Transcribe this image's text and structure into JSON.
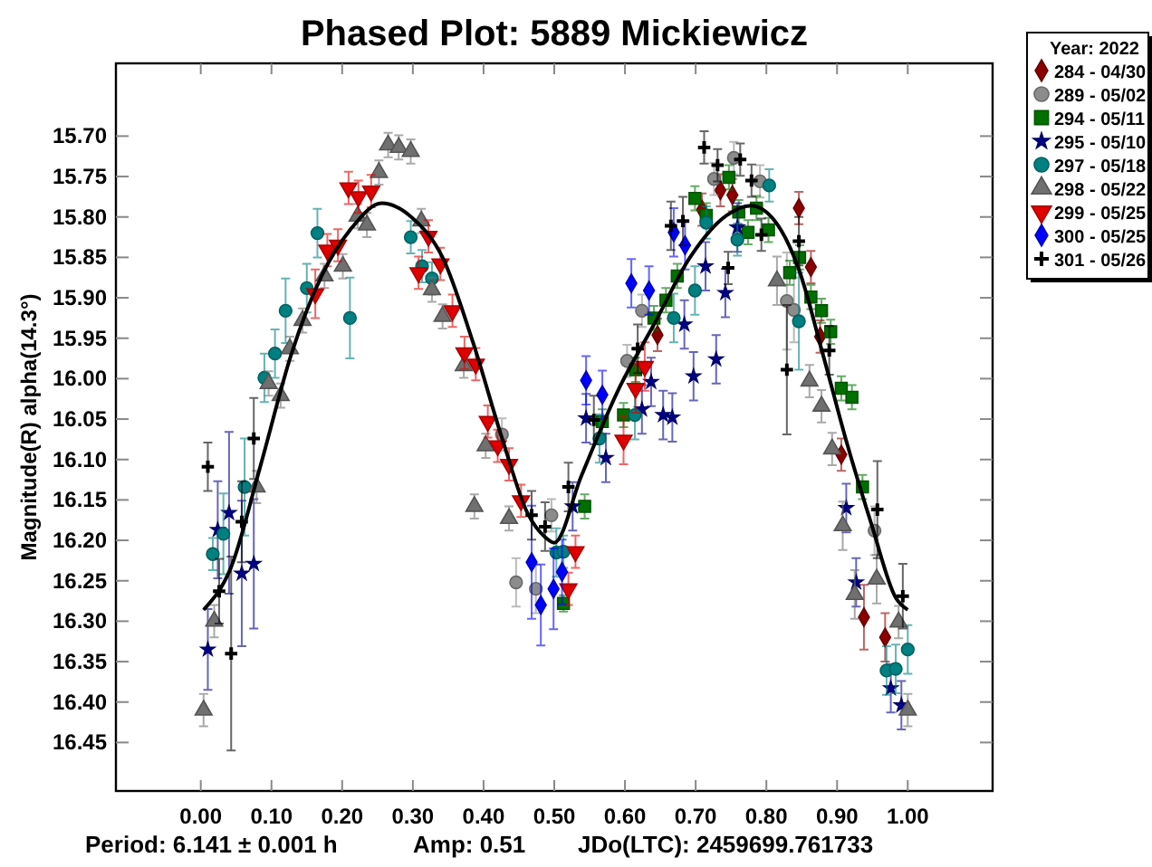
{
  "chart_data": {
    "type": "scatter",
    "title": "Phased Plot: 5889 Mickiewicz",
    "ylabel": "Magnitude(R) alpha(14.3°)",
    "legend_title": "Year: 2022",
    "legend": "top right",
    "xlim": [
      -0.12,
      1.12
    ],
    "xticks": [
      {
        "value": 0,
        "label": "0.00"
      },
      {
        "value": 0.1,
        "label": "0.10"
      },
      {
        "value": 0.2,
        "label": "0.20"
      },
      {
        "value": 0.3,
        "label": "0.30"
      },
      {
        "value": 0.4,
        "label": "0.40"
      },
      {
        "value": 0.5,
        "label": "0.50"
      },
      {
        "value": 0.6,
        "label": "0.60"
      },
      {
        "value": 0.7,
        "label": "0.70"
      },
      {
        "value": 0.8,
        "label": "0.80"
      },
      {
        "value": 0.9,
        "label": "0.90"
      },
      {
        "value": 1,
        "label": "1.00"
      }
    ],
    "ylim": [
      16.51,
      15.61
    ],
    "yticks": [
      {
        "value": 15.7,
        "label": "15.70"
      },
      15.75,
      {
        "value": 15.8,
        "label": "15.80"
      },
      15.85,
      {
        "value": 15.9,
        "label": "15.90"
      },
      15.95,
      {
        "value": 16.0,
        "label": "16.00"
      },
      16.05,
      {
        "value": 16.1,
        "label": "16.10"
      },
      16.15,
      {
        "value": 16.2,
        "label": "16.20"
      },
      16.25,
      {
        "value": 16.3,
        "label": "16.30"
      },
      16.35,
      {
        "value": 16.4,
        "label": "16.40"
      },
      16.45
    ],
    "annotations": [
      "Period: 6.141 ± 0.001 h",
      "Amp: 0.51",
      "JDo(LTC): 2459699.761733"
    ],
    "series": [
      {
        "name": "284 - 04/30",
        "color": "#8b0000",
        "marker": "diamond",
        "x": [
          0.646,
          0.709,
          0.735,
          0.752,
          0.846,
          0.863,
          0.876,
          0.906,
          0.938,
          0.968
        ],
        "values": [
          15.946,
          15.791,
          15.767,
          15.773,
          15.789,
          15.862,
          15.948,
          16.094,
          16.295,
          16.32
        ],
        "errors": [
          0.02,
          0.02,
          0.02,
          0.02,
          0.02,
          0.02,
          0.02,
          0.02,
          0.04,
          0.03
        ]
      },
      {
        "name": "289 - 05/02",
        "color": "#8c8c8c",
        "marker": "circle",
        "x": [
          0.426,
          0.446,
          0.474,
          0.496,
          0.603,
          0.624,
          0.726,
          0.754,
          0.791,
          0.829,
          0.839,
          0.953
        ],
        "values": [
          16.069,
          16.252,
          16.26,
          16.169,
          15.978,
          15.916,
          15.753,
          15.727,
          15.756,
          15.904,
          15.915,
          16.188
        ],
        "errors": [
          0.02,
          0.03,
          0.03,
          0.02,
          0.02,
          0.02,
          0.02,
          0.02,
          0.02,
          0.06,
          0.04,
          0.03
        ]
      },
      {
        "name": "294 - 05/11",
        "color": "#007000",
        "marker": "square",
        "x": [
          0.513,
          0.543,
          0.568,
          0.598,
          0.615,
          0.641,
          0.658,
          0.674,
          0.699,
          0.715,
          0.747,
          0.761,
          0.774,
          0.786,
          0.803,
          0.833,
          0.847,
          0.863,
          0.878,
          0.891,
          0.906,
          0.921,
          0.936
        ],
        "values": [
          16.278,
          16.158,
          16.053,
          16.045,
          15.989,
          15.925,
          15.903,
          15.873,
          15.777,
          15.798,
          15.751,
          15.794,
          15.819,
          15.789,
          15.816,
          15.869,
          15.85,
          15.899,
          15.916,
          15.942,
          16.012,
          16.023,
          16.134
        ],
        "errors": [
          0.01,
          0.015,
          0.015,
          0.015,
          0.015,
          0.015,
          0.015,
          0.015,
          0.015,
          0.015,
          0.015,
          0.015,
          0.015,
          0.015,
          0.015,
          0.015,
          0.015,
          0.015,
          0.015,
          0.015,
          0.015,
          0.015,
          0.015
        ]
      },
      {
        "name": "295 - 05/10",
        "color": "#00008b",
        "marker": "star",
        "x": [
          0.01,
          0.024,
          0.04,
          0.058,
          0.075,
          0.526,
          0.545,
          0.573,
          0.624,
          0.637,
          0.654,
          0.667,
          0.684,
          0.697,
          0.714,
          0.729,
          0.742,
          0.759,
          0.913,
          0.927,
          0.976,
          0.991
        ],
        "values": [
          16.335,
          16.187,
          16.166,
          16.241,
          16.229,
          16.158,
          16.049,
          16.098,
          16.038,
          16.004,
          16.045,
          16.048,
          15.933,
          15.997,
          15.861,
          15.976,
          15.894,
          15.813,
          16.16,
          16.252,
          16.383,
          16.404
        ],
        "errors": [
          0.05,
          0.06,
          0.1,
          0.09,
          0.08,
          0.03,
          0.03,
          0.03,
          0.03,
          0.03,
          0.03,
          0.03,
          0.03,
          0.03,
          0.03,
          0.03,
          0.03,
          0.03,
          0.03,
          0.03,
          0.03,
          0.03
        ]
      },
      {
        "name": "297 - 05/18",
        "color": "#008080",
        "marker": "circle",
        "x": [
          0.017,
          0.032,
          0.062,
          0.09,
          0.105,
          0.12,
          0.15,
          0.165,
          0.211,
          0.297,
          0.313,
          0.327,
          0.503,
          0.513,
          0.564,
          0.614,
          0.669,
          0.699,
          0.715,
          0.759,
          0.804,
          0.846,
          0.97,
          0.983,
          1.0
        ],
        "values": [
          16.217,
          16.192,
          16.134,
          15.999,
          15.969,
          15.916,
          15.888,
          15.82,
          15.925,
          15.825,
          15.861,
          15.876,
          16.215,
          16.214,
          16.074,
          16.045,
          15.925,
          15.891,
          15.807,
          15.828,
          15.761,
          15.929,
          16.361,
          16.359,
          16.335
        ],
        "errors": [
          0.02,
          0.05,
          0.06,
          0.03,
          0.03,
          0.04,
          0.03,
          0.03,
          0.05,
          0.02,
          0.02,
          0.02,
          0.03,
          0.02,
          0.03,
          0.03,
          0.03,
          0.03,
          0.02,
          0.02,
          0.02,
          0.06,
          0.03,
          0.03,
          0.03
        ]
      },
      {
        "name": "298 - 05/22",
        "color": "#707070",
        "marker": "triangle",
        "x": [
          0.004,
          0.019,
          0.079,
          0.096,
          0.113,
          0.126,
          0.144,
          0.175,
          0.201,
          0.222,
          0.235,
          0.252,
          0.265,
          0.28,
          0.297,
          0.312,
          0.327,
          0.342,
          0.372,
          0.387,
          0.403,
          0.436,
          0.815,
          0.861,
          0.878,
          0.893,
          0.908,
          0.925,
          0.956,
          0.987,
          1.0
        ],
        "values": [
          16.41,
          16.3,
          16.134,
          16.006,
          16.021,
          15.963,
          15.928,
          15.873,
          15.861,
          15.799,
          15.81,
          15.745,
          15.711,
          15.714,
          15.719,
          15.805,
          15.89,
          15.923,
          15.984,
          16.158,
          16.083,
          16.173,
          15.879,
          16.003,
          16.034,
          16.087,
          16.182,
          16.267,
          16.248,
          16.301,
          16.41
        ],
        "errors": [
          0.02,
          0.02,
          0.02,
          0.015,
          0.015,
          0.015,
          0.015,
          0.015,
          0.015,
          0.015,
          0.015,
          0.015,
          0.015,
          0.015,
          0.015,
          0.015,
          0.015,
          0.015,
          0.015,
          0.015,
          0.015,
          0.015,
          0.03,
          0.02,
          0.02,
          0.02,
          0.03,
          0.03,
          0.03,
          0.02,
          0.02
        ]
      },
      {
        "name": "299 - 05/25",
        "color": "#e00000",
        "marker": "triangle-down",
        "x": [
          0.162,
          0.179,
          0.194,
          0.209,
          0.223,
          0.241,
          0.308,
          0.322,
          0.339,
          0.356,
          0.373,
          0.389,
          0.406,
          0.42,
          0.436,
          0.453,
          0.52,
          0.53,
          0.598,
          0.615,
          0.628
        ],
        "values": [
          15.895,
          15.841,
          15.835,
          15.764,
          15.775,
          15.768,
          15.869,
          15.824,
          15.858,
          15.916,
          15.968,
          15.982,
          16.053,
          16.083,
          16.106,
          16.151,
          16.26,
          16.214,
          16.076,
          16.012,
          15.985
        ],
        "errors": [
          0.03,
          0.02,
          0.02,
          0.02,
          0.02,
          0.02,
          0.02,
          0.02,
          0.02,
          0.02,
          0.02,
          0.02,
          0.02,
          0.02,
          0.02,
          0.02,
          0.02,
          0.02,
          0.03,
          0.03,
          0.03
        ]
      },
      {
        "name": "300 - 05/25",
        "color": "#0000ff",
        "marker": "diamond",
        "x": [
          0.468,
          0.481,
          0.499,
          0.511,
          0.545,
          0.568,
          0.609,
          0.634,
          0.669,
          0.685
        ],
        "values": [
          16.227,
          16.28,
          16.26,
          16.239,
          16.002,
          16.02,
          15.882,
          15.891,
          15.819,
          15.835
        ],
        "errors": [
          0.07,
          0.05,
          0.05,
          0.04,
          0.03,
          0.03,
          0.03,
          0.03,
          0.03,
          0.03
        ]
      },
      {
        "name": "301 - 05/26",
        "color": "#000000",
        "marker": "cross",
        "x": [
          0.01,
          0.026,
          0.043,
          0.058,
          0.075,
          0.468,
          0.487,
          0.52,
          0.556,
          0.618,
          0.665,
          0.682,
          0.712,
          0.731,
          0.763,
          0.779,
          0.746,
          0.793,
          0.829,
          0.846,
          0.889,
          0.957,
          0.993
        ],
        "values": [
          16.109,
          16.263,
          16.34,
          16.177,
          16.074,
          16.169,
          16.183,
          16.134,
          16.051,
          15.963,
          15.811,
          15.805,
          15.714,
          15.736,
          15.729,
          15.755,
          15.863,
          15.822,
          15.989,
          15.83,
          15.965,
          16.162,
          16.269
        ],
        "errors": [
          0.03,
          0.04,
          0.12,
          0.05,
          0.05,
          0.03,
          0.03,
          0.03,
          0.03,
          0.03,
          0.03,
          0.03,
          0.02,
          0.02,
          0.02,
          0.02,
          0.02,
          0.02,
          0.08,
          0.03,
          0.03,
          0.06,
          0.04
        ]
      },
      {
        "type": "line",
        "color": "#000000",
        "marker": "none",
        "x": [
          0.004,
          0.043,
          0.085,
          0.128,
          0.171,
          0.214,
          0.256,
          0.299,
          0.342,
          0.385,
          0.427,
          0.462,
          0.487,
          0.5,
          0.538,
          0.59,
          0.641,
          0.692,
          0.744,
          0.778,
          0.812,
          0.846,
          0.88,
          0.915,
          0.949,
          0.983,
          1.0
        ],
        "values": [
          16.286,
          16.233,
          16.106,
          15.97,
          15.873,
          15.813,
          15.783,
          15.801,
          15.85,
          15.955,
          16.076,
          16.166,
          16.196,
          16.203,
          16.121,
          16.015,
          15.933,
          15.85,
          15.798,
          15.786,
          15.805,
          15.865,
          15.97,
          16.083,
          16.181,
          16.271,
          16.286
        ]
      }
    ]
  }
}
